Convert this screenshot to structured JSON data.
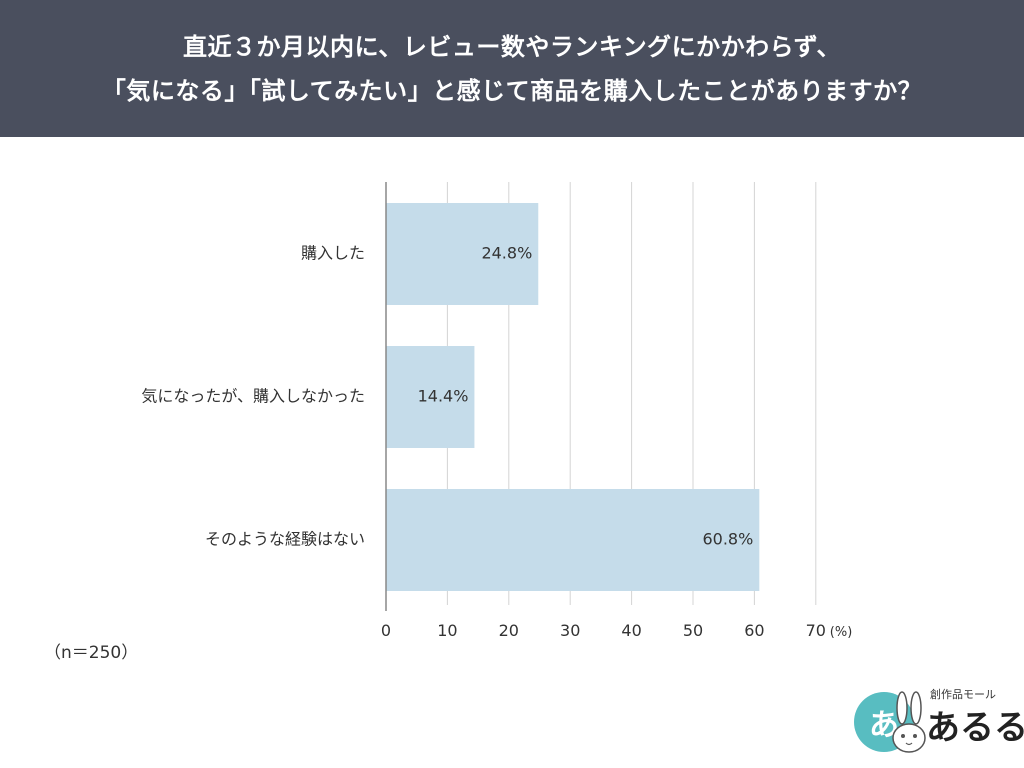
{
  "header": {
    "title_line1": "直近３か月以内に、レビュー数やランキングにかかわらず、",
    "title_line2": "「気になる」「試してみたい」と感じて商品を購入したことがありますか？"
  },
  "sample_note": "（n＝250）",
  "logo": {
    "circle_text": "あ",
    "small_text": "創作品モール",
    "big_text": "あるる"
  },
  "colors": {
    "header_bg": "#4a4f5e",
    "bar": "#c5dcea",
    "grid": "#d4d4d4",
    "axis": "#888888",
    "text": "#333333",
    "logo_teal": "#58bdc1"
  },
  "chart_data": {
    "type": "bar",
    "orientation": "horizontal",
    "categories": [
      "購入した",
      "気になったが、購入しなかった",
      "そのような経験はない"
    ],
    "values": [
      24.8,
      14.4,
      60.8
    ],
    "value_labels": [
      "24.8%",
      "14.4%",
      "60.8%"
    ],
    "xlim": [
      0,
      70
    ],
    "xticks": [
      0,
      10,
      20,
      30,
      40,
      50,
      60,
      70
    ],
    "xtick_labels": [
      "0",
      "10",
      "20",
      "30",
      "40",
      "50",
      "60",
      "70"
    ],
    "unit_label": "(%)",
    "grid": true
  }
}
